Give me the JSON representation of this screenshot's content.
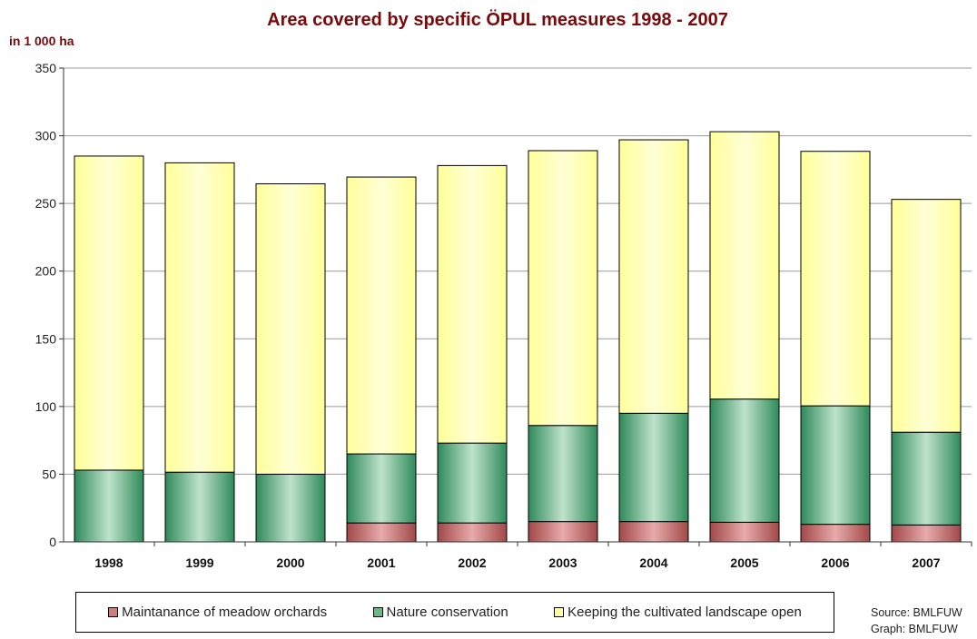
{
  "chart_data": {
    "type": "bar",
    "stacked": true,
    "title": "Area covered by specific ÖPUL measures 1998 - 2007",
    "unit_label": "in 1 000 ha",
    "categories": [
      "1998",
      "1999",
      "2000",
      "2001",
      "2002",
      "2003",
      "2004",
      "2005",
      "2006",
      "2007"
    ],
    "series": [
      {
        "name": "Maintanance of meadow orchards",
        "color": "#c06a6a",
        "values": [
          0,
          0,
          0,
          14,
          14,
          15,
          15,
          14.5,
          13,
          12.5
        ]
      },
      {
        "name": "Nature conservation",
        "color": "#5aa37a",
        "values": [
          53,
          51.5,
          50,
          51,
          59,
          71,
          80,
          91,
          87.5,
          68.5
        ]
      },
      {
        "name": "Keeping the cultivated landscape open",
        "color": "#ffffa8",
        "values": [
          232,
          228.5,
          214.5,
          204.5,
          205,
          203,
          202,
          197.5,
          188,
          172
        ]
      }
    ],
    "y_ticks": [
      "0",
      "50",
      "100",
      "150",
      "200",
      "250",
      "300",
      "350"
    ],
    "ylim": [
      0,
      350
    ],
    "grid": true,
    "legend_position": "bottom"
  },
  "source_lines": [
    "Source: BMLFUW",
    "Graph: BMLFUW"
  ]
}
